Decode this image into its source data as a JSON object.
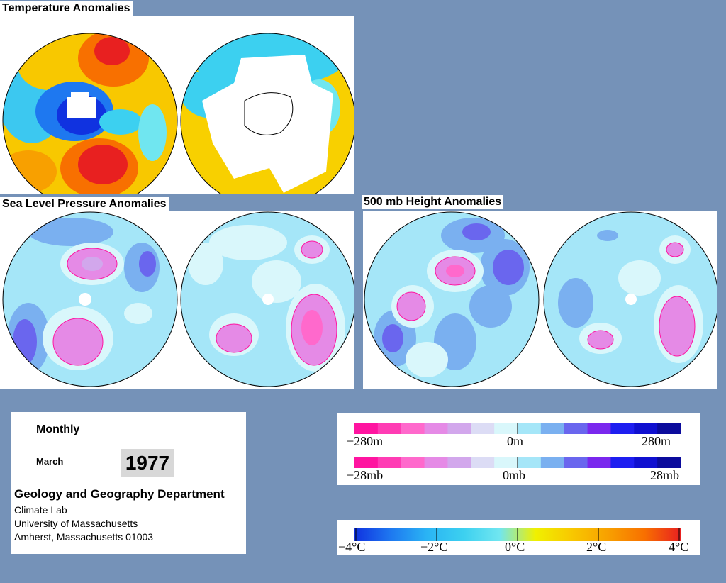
{
  "titles": {
    "temperature": "Temperature Anomalies",
    "slp": "Sea Level Pressure Anomalies",
    "height500": "500 mb Height Anomalies"
  },
  "info": {
    "period": "Monthly",
    "month": "March",
    "year": "1977",
    "department": "Geology and Geography Department",
    "lab": "Climate Lab",
    "university": "University of Massachusetts",
    "address": "Amherst, Massachusetts 01003"
  },
  "height_legend": {
    "min": "−280m",
    "mid": "0m",
    "max": "280m"
  },
  "pressure_legend": {
    "min": "−28mb",
    "mid": "0mb",
    "max": "28mb"
  },
  "temp_legend": {
    "l1": "−4°C",
    "l2": "−2°C",
    "l3": "0°C",
    "l4": "2°C",
    "l5": "4°C"
  },
  "colors": {
    "background": "#7592b8",
    "pressure_scale": [
      "#ff14a0",
      "#ff3cb4",
      "#ff69cc",
      "#e58ae6",
      "#d2a7ec",
      "#dcdcf5",
      "#d9f7fb",
      "#a5e6f8",
      "#7ab0f0",
      "#6a66ee",
      "#7a28ee",
      "#1e1ef0",
      "#1010d0",
      "#0b0b9c"
    ],
    "temp_scale": [
      "#1032e0",
      "#1e78f0",
      "#2ab4f4",
      "#3cd0f0",
      "#70e6f0",
      "#f0f000",
      "#f8c800",
      "#f8a000",
      "#f87000",
      "#e82020"
    ]
  }
}
